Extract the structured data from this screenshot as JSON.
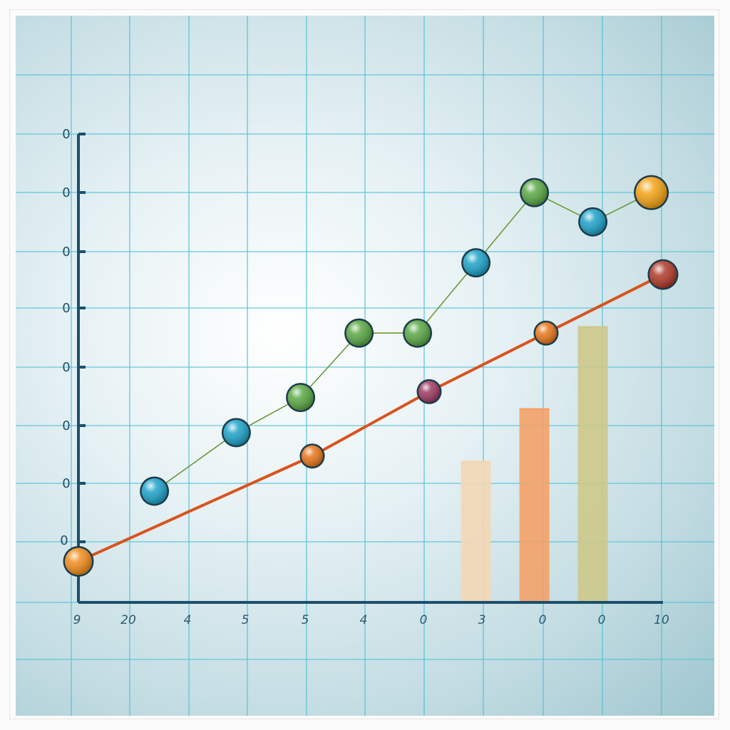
{
  "chart_data": {
    "type": "line",
    "title": "",
    "xlabel": "",
    "ylabel": "",
    "x_tick_labels": [
      "9",
      "20",
      "4",
      "5",
      "5",
      "4",
      "0",
      "3",
      "0",
      "0",
      "10"
    ],
    "y_tick_labels": [
      "0",
      "0",
      "0",
      "0",
      "0",
      "0",
      "0",
      "0"
    ],
    "x_range": [
      0,
      10
    ],
    "y_range": [
      0,
      8
    ],
    "grid": true,
    "legend": "none",
    "series": [
      {
        "kind": "line",
        "color": "#d9531e",
        "x": [
          0,
          4,
          6,
          8,
          10
        ],
        "y": [
          0.7,
          2.5,
          3.6,
          4.6,
          5.6
        ],
        "marker_colors": [
          "#f08c1c",
          "#e8771c",
          "#9e3b62",
          "#e8771c",
          "#b03a2a"
        ]
      },
      {
        "kind": "line",
        "color": "#6b9a3a",
        "x": [
          1.3,
          2.7,
          3.8,
          4.8,
          5.8,
          6.8,
          7.8,
          8.8,
          9.8
        ],
        "y": [
          1.9,
          2.9,
          3.5,
          4.6,
          4.6,
          5.8,
          7.0,
          6.5,
          7.0
        ],
        "marker_colors": [
          "#1fa3c9",
          "#1fa3c9",
          "#5aa845",
          "#5aa845",
          "#5aa845",
          "#1fa3c9",
          "#5aa845",
          "#1fa3c9",
          "#f2a316"
        ]
      },
      {
        "kind": "bar",
        "x": [
          6.8,
          7.8,
          8.8
        ],
        "values": [
          2.4,
          3.3,
          4.7
        ],
        "colors": [
          "#f3d7b5",
          "#f3a268",
          "#cdc98a"
        ]
      }
    ]
  }
}
